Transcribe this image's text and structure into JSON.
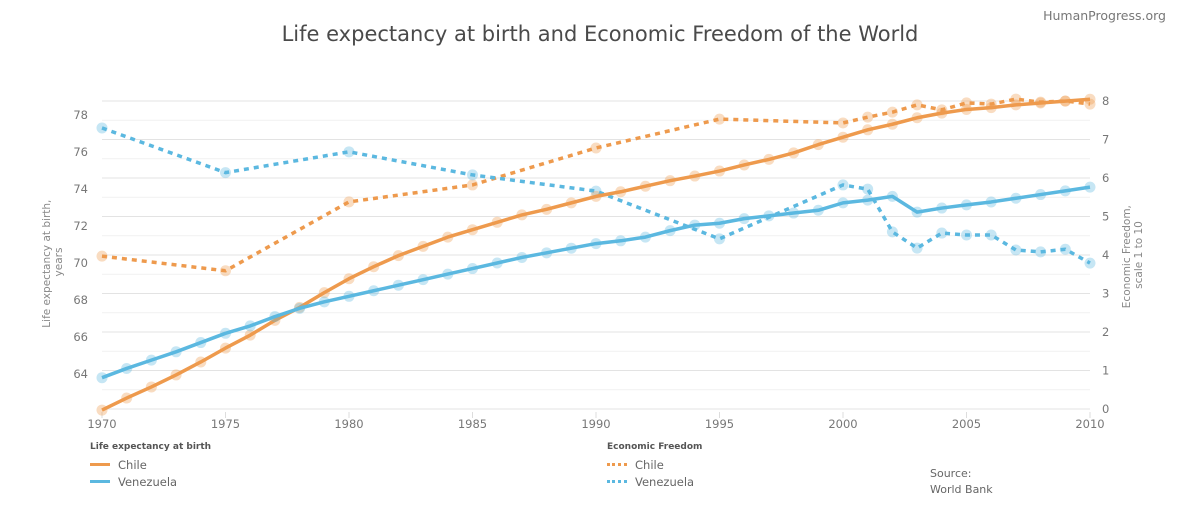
{
  "brand": "HumanProgress.org",
  "source": {
    "label": "Source:",
    "value": "World Bank"
  },
  "colors": {
    "chile": "#ee9a4d",
    "venezuela": "#5bb8e0",
    "grid": "#e6e6e6"
  },
  "legend": {
    "life": {
      "title": "Life expectancy at birth",
      "items": [
        "Chile",
        "Venezuela"
      ]
    },
    "ef": {
      "title": "Economic Freedom",
      "items": [
        "Chile",
        "Venezuela"
      ]
    }
  },
  "chart_data": {
    "type": "line",
    "title": "Life expectancy at birth and Economic Freedom of the World",
    "xlabel": "",
    "ylabel": "Life expectancy at birth, years",
    "ylabel_lines": [
      "Life expectancy at birth,",
      "years"
    ],
    "y2label": "Economic Freedom, scale 1 to 10",
    "y2label_lines": [
      "Economic Freedom,",
      "scale 1 to 10"
    ],
    "xlim": [
      1970,
      2010
    ],
    "ylim": [
      62,
      79
    ],
    "y2lim": [
      0,
      8
    ],
    "xticks": [
      1970,
      1975,
      1980,
      1985,
      1990,
      1995,
      2000,
      2005,
      2010
    ],
    "yticks": [
      64,
      66,
      68,
      70,
      72,
      74,
      76,
      78
    ],
    "y2ticks": [
      0,
      1,
      2,
      3,
      4,
      5,
      6,
      7,
      8
    ],
    "grid": true,
    "legend_position": "bottom",
    "series": [
      {
        "name": "Chile",
        "group": "Life expectancy at birth",
        "axis": "left",
        "style": "solid",
        "color": "#ee9a4d",
        "x": [
          1970,
          1971,
          1972,
          1973,
          1974,
          1975,
          1976,
          1977,
          1978,
          1979,
          1980,
          1981,
          1982,
          1983,
          1984,
          1985,
          1986,
          1987,
          1988,
          1989,
          1990,
          1991,
          1992,
          1993,
          1994,
          1995,
          1996,
          1997,
          1998,
          1999,
          2000,
          2001,
          2002,
          2003,
          2004,
          2005,
          2006,
          2007,
          2008,
          2009,
          2010
        ],
        "values": [
          62.05,
          62.7,
          63.3,
          63.95,
          64.65,
          65.4,
          66.1,
          66.9,
          67.6,
          68.4,
          69.15,
          69.8,
          70.4,
          70.9,
          71.4,
          71.8,
          72.2,
          72.6,
          72.9,
          73.25,
          73.6,
          73.85,
          74.15,
          74.45,
          74.7,
          74.97,
          75.3,
          75.6,
          75.95,
          76.4,
          76.8,
          77.2,
          77.5,
          77.85,
          78.1,
          78.3,
          78.4,
          78.55,
          78.65,
          78.75,
          78.85
        ]
      },
      {
        "name": "Venezuela",
        "group": "Life expectancy at birth",
        "axis": "left",
        "style": "solid",
        "color": "#5bb8e0",
        "x": [
          1970,
          1971,
          1972,
          1973,
          1974,
          1975,
          1976,
          1977,
          1978,
          1979,
          1980,
          1981,
          1982,
          1983,
          1984,
          1985,
          1986,
          1987,
          1988,
          1989,
          1990,
          1991,
          1992,
          1993,
          1994,
          1995,
          1996,
          1997,
          1998,
          1999,
          2000,
          2001,
          2002,
          2003,
          2004,
          2005,
          2006,
          2007,
          2008,
          2009,
          2010
        ],
        "values": [
          63.8,
          64.3,
          64.75,
          65.2,
          65.7,
          66.2,
          66.6,
          67.1,
          67.55,
          67.9,
          68.2,
          68.5,
          68.8,
          69.1,
          69.4,
          69.7,
          70.0,
          70.3,
          70.55,
          70.8,
          71.05,
          71.2,
          71.4,
          71.75,
          72.05,
          72.15,
          72.4,
          72.55,
          72.7,
          72.85,
          73.25,
          73.4,
          73.6,
          72.75,
          72.97,
          73.14,
          73.3,
          73.5,
          73.7,
          73.9,
          74.1
        ]
      },
      {
        "name": "Chile",
        "group": "Economic Freedom",
        "axis": "right",
        "style": "dotted",
        "color": "#ee9a4d",
        "x": [
          1970,
          1975,
          1980,
          1985,
          1990,
          1995,
          2000,
          2001,
          2002,
          2003,
          2004,
          2005,
          2006,
          2007,
          2008,
          2009,
          2010
        ],
        "values": [
          3.97,
          3.59,
          5.38,
          5.82,
          6.78,
          7.53,
          7.43,
          7.58,
          7.71,
          7.9,
          7.77,
          7.95,
          7.92,
          8.05,
          7.97,
          8.0,
          7.92
        ]
      },
      {
        "name": "Venezuela",
        "group": "Economic Freedom",
        "axis": "right",
        "style": "dotted",
        "color": "#5bb8e0",
        "x": [
          1970,
          1975,
          1980,
          1985,
          1990,
          1995,
          2000,
          2001,
          2002,
          2003,
          2004,
          2005,
          2006,
          2007,
          2008,
          2009,
          2010
        ],
        "values": [
          7.3,
          6.14,
          6.68,
          6.08,
          5.66,
          4.42,
          5.82,
          5.71,
          4.6,
          4.18,
          4.57,
          4.52,
          4.52,
          4.13,
          4.08,
          4.15,
          3.79
        ]
      }
    ]
  }
}
